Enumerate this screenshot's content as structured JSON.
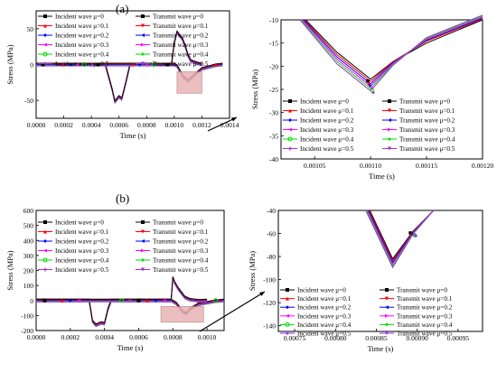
{
  "panel_labels": [
    "(a)",
    "(b)"
  ],
  "colors": {
    "s0": "#000000",
    "s1": "#ff0000",
    "s2": "#0000ff",
    "s3": "#ff00ff",
    "s4": "#00dd00",
    "s5": "#9933cc",
    "inset": "#e8b4b4",
    "arrow": "#000000"
  },
  "legend_labels": {
    "incident": [
      "Incident wave μ=0",
      "Incident wave μ=0.1",
      "Incident wave μ=0.2",
      "Incident wave μ=0.3",
      "Incident wave μ=0.4",
      "Incident wave μ=0.5"
    ],
    "transmit": [
      "Transmit wave μ=0",
      "Transmit wave μ=0.1",
      "Transmit wave μ=0.2",
      "Transmit wave μ=0.3",
      "Transmit wave μ=0.4",
      "Transmit wave μ=0.5"
    ]
  },
  "chart_data": [
    {
      "id": "a-main",
      "type": "line",
      "xlabel": "Time (s)",
      "ylabel": "Stress (MPa)",
      "xlim": [
        0,
        0.0014
      ],
      "ylim": [
        -75,
        75
      ],
      "xticks": [
        "0.0000",
        "0.0002",
        "0.0004",
        "0.0006",
        "0.0008",
        "0.0010",
        "0.0012",
        "0.0014"
      ],
      "xtick_values": [
        0,
        0.0002,
        0.0004,
        0.0006,
        0.0008,
        0.001,
        0.0012,
        0.0014
      ],
      "yticks": [
        "-50",
        "0",
        "50"
      ],
      "ytick_values": [
        -50,
        0,
        50
      ],
      "series": [
        {
          "role": "incident",
          "x": [
            0,
            0.0005,
            0.00055,
            0.00057,
            0.0006,
            0.00062,
            0.00065,
            0.00068,
            0.001,
            0.00102,
            0.00106,
            0.0011,
            0.00114,
            0.0012,
            0.0013,
            0.00135
          ],
          "y": [
            0,
            0,
            -35,
            -52,
            -45,
            -48,
            -25,
            0,
            0,
            -2,
            -16,
            -23,
            -16,
            -6,
            -1,
            0
          ]
        },
        {
          "role": "transmit",
          "x": [
            0,
            0.00098,
            0.001,
            0.00102,
            0.00104,
            0.00106,
            0.00108,
            0.0011,
            0.00112,
            0.00116,
            0.0012
          ],
          "y": [
            0,
            0,
            30,
            45,
            40,
            35,
            25,
            12,
            5,
            2,
            0
          ]
        }
      ]
    },
    {
      "id": "a-zoom",
      "type": "line",
      "xlabel": "Time (s)",
      "ylabel": "Stress (MPa)",
      "xlim": [
        0.00102,
        0.0012
      ],
      "ylim": [
        -40,
        -10
      ],
      "xticks": [
        "0.00105",
        "0.00110",
        "0.00115",
        "0.00120"
      ],
      "xtick_values": [
        0.00105,
        0.0011,
        0.00115,
        0.0012
      ],
      "yticks": [
        "-10",
        "-15",
        "-20",
        "-25",
        "-30",
        "-35",
        "-40"
      ],
      "ytick_values": [
        -10,
        -15,
        -20,
        -25,
        -30,
        -35,
        -40
      ],
      "series": [
        {
          "role": "mu",
          "mu": 0,
          "x": [
            0.001042,
            0.00107,
            0.0011,
            0.00112,
            0.00115,
            0.0012
          ],
          "y": [
            -10,
            -17,
            -22.8,
            -19,
            -15,
            -10
          ]
        },
        {
          "role": "mu",
          "mu": 0.1,
          "x": [
            0.001041,
            0.00107,
            0.0011,
            0.00112,
            0.00115,
            0.0012
          ],
          "y": [
            -10,
            -17.5,
            -23.3,
            -19,
            -14.6,
            -9.8
          ]
        },
        {
          "role": "mu",
          "mu": 0.2,
          "x": [
            0.00104,
            0.00107,
            0.0011,
            0.00112,
            0.00115,
            0.0012
          ],
          "y": [
            -10,
            -18,
            -23.8,
            -19.2,
            -14.4,
            -9.6
          ]
        },
        {
          "role": "mu",
          "mu": 0.3,
          "x": [
            0.001039,
            0.00107,
            0.0011,
            0.00112,
            0.00115,
            0.0012
          ],
          "y": [
            -10,
            -18.5,
            -24.3,
            -19.4,
            -14.2,
            -9.4
          ]
        },
        {
          "role": "mu",
          "mu": 0.4,
          "x": [
            0.001038,
            0.00107,
            0.0011,
            0.00112,
            0.00115,
            0.0012
          ],
          "y": [
            -10,
            -19,
            -24.8,
            -19.6,
            -14,
            -9.2
          ]
        },
        {
          "role": "mu",
          "mu": 0.5,
          "x": [
            0.001037,
            0.00107,
            0.0011,
            0.00112,
            0.00115,
            0.0012
          ],
          "y": [
            -10,
            -19.5,
            -25.3,
            -19.8,
            -13.8,
            -9
          ]
        }
      ]
    },
    {
      "id": "b-main",
      "type": "line",
      "xlabel": "Time (s)",
      "ylabel": "Stress (MPa)",
      "xlim": [
        0,
        0.0011
      ],
      "ylim": [
        -200,
        600
      ],
      "xticks": [
        "0.0000",
        "0.0002",
        "0.0004",
        "0.0006",
        "0.0008",
        "0.0010"
      ],
      "xtick_values": [
        0,
        0.0002,
        0.0004,
        0.0006,
        0.0008,
        0.001
      ],
      "yticks": [
        "600",
        "500",
        "400",
        "300",
        "200",
        "100",
        "0",
        "-100",
        "-200"
      ],
      "ytick_values": [
        600,
        500,
        400,
        300,
        200,
        100,
        0,
        -100,
        -200
      ],
      "series": [
        {
          "role": "incident",
          "x": [
            0,
            0.00031,
            0.00033,
            0.00035,
            0.00038,
            0.0004,
            0.00042,
            0.00044,
            0.00079,
            0.00082,
            0.00086,
            0.00088,
            0.0009,
            0.00095,
            0.00105,
            0.0011
          ],
          "y": [
            0,
            0,
            -140,
            -165,
            -150,
            -155,
            -60,
            0,
            0,
            -20,
            -80,
            -88,
            -60,
            -25,
            -5,
            0
          ]
        },
        {
          "role": "transmit",
          "x": [
            0,
            0.00079,
            0.0008,
            0.00081,
            0.00083,
            0.00085,
            0.00087,
            0.0009,
            0.00095,
            0.001
          ],
          "y": [
            0,
            0,
            150,
            120,
            80,
            50,
            20,
            5,
            -2,
            0
          ]
        }
      ]
    },
    {
      "id": "b-zoom",
      "type": "line",
      "xlabel": "Time (s)",
      "ylabel": "Stress (MPa)",
      "xlim": [
        0.00073,
        0.00098
      ],
      "ylim": [
        -145,
        -40
      ],
      "xticks": [
        "0.00075",
        "0.00080",
        "0.00085",
        "0.00090",
        "0.00095"
      ],
      "xtick_values": [
        0.00075,
        0.0008,
        0.00085,
        0.0009,
        0.00095
      ],
      "yticks": [
        "-40",
        "-60",
        "-80",
        "-100",
        "-120",
        "-140"
      ],
      "ytick_values": [
        -40,
        -60,
        -80,
        -100,
        -120,
        -140
      ],
      "series": [
        {
          "role": "mu",
          "mu": 0,
          "x": [
            0.000842,
            0.00087,
            0.000895,
            0.00092
          ],
          "y": [
            -40,
            -82,
            -58,
            -40
          ]
        },
        {
          "role": "mu",
          "mu": 0.1,
          "x": [
            0.000841,
            0.00087,
            0.000895,
            0.00092
          ],
          "y": [
            -40,
            -83.5,
            -58.5,
            -40
          ]
        },
        {
          "role": "mu",
          "mu": 0.2,
          "x": [
            0.00084,
            0.00087,
            0.000895,
            0.00092
          ],
          "y": [
            -40,
            -85,
            -59,
            -40
          ]
        },
        {
          "role": "mu",
          "mu": 0.3,
          "x": [
            0.000839,
            0.00087,
            0.000895,
            0.00092
          ],
          "y": [
            -40,
            -86.5,
            -59.5,
            -40
          ]
        },
        {
          "role": "mu",
          "mu": 0.4,
          "x": [
            0.000838,
            0.00087,
            0.000895,
            0.00092
          ],
          "y": [
            -40,
            -88,
            -60,
            -40
          ]
        },
        {
          "role": "mu",
          "mu": 0.5,
          "x": [
            0.000837,
            0.00087,
            0.000895,
            0.00092
          ],
          "y": [
            -40,
            -89.5,
            -60.5,
            -40
          ]
        }
      ]
    }
  ]
}
